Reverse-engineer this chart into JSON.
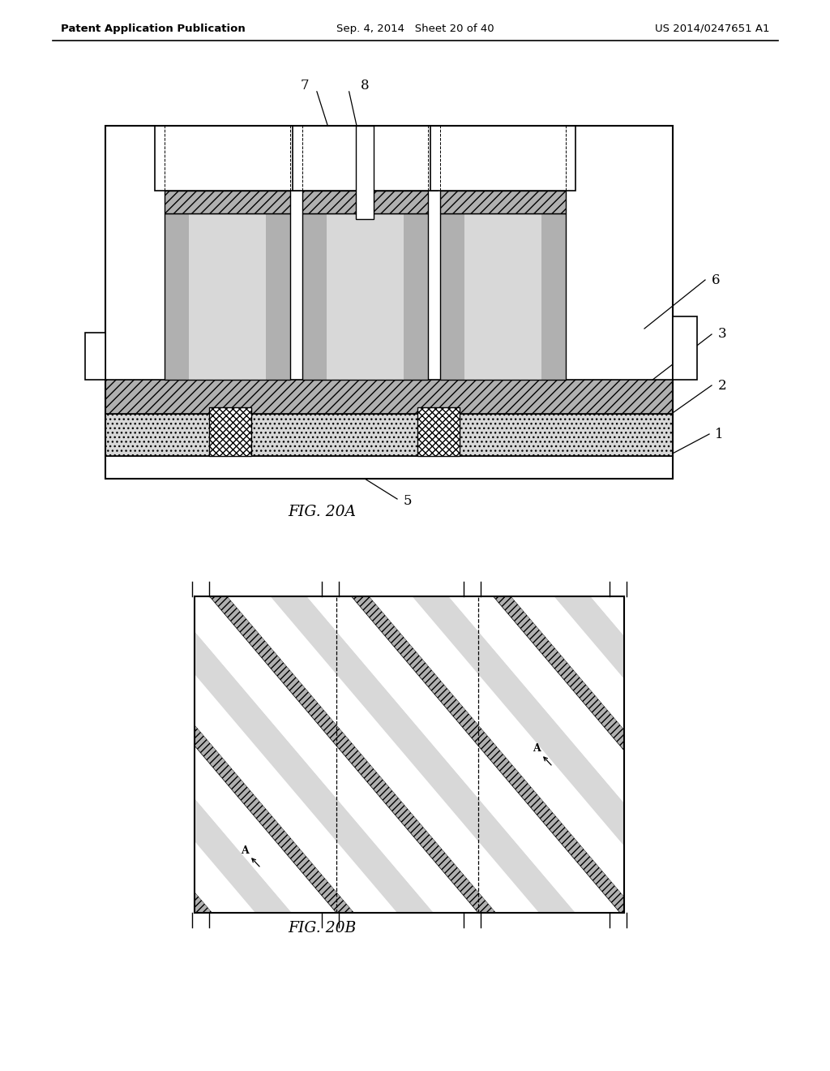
{
  "background_color": "#ffffff",
  "header_left": "Patent Application Publication",
  "header_mid": "Sep. 4, 2014   Sheet 20 of 40",
  "header_right": "US 2014/0247651 A1",
  "fig_label_A": "FIG. 20A",
  "fig_label_B": "FIG. 20B",
  "label_5": "5",
  "label_1": "1",
  "label_2": "2",
  "label_3": "3",
  "label_6": "6",
  "label_7": "7",
  "label_8": "8",
  "label_A": "A"
}
